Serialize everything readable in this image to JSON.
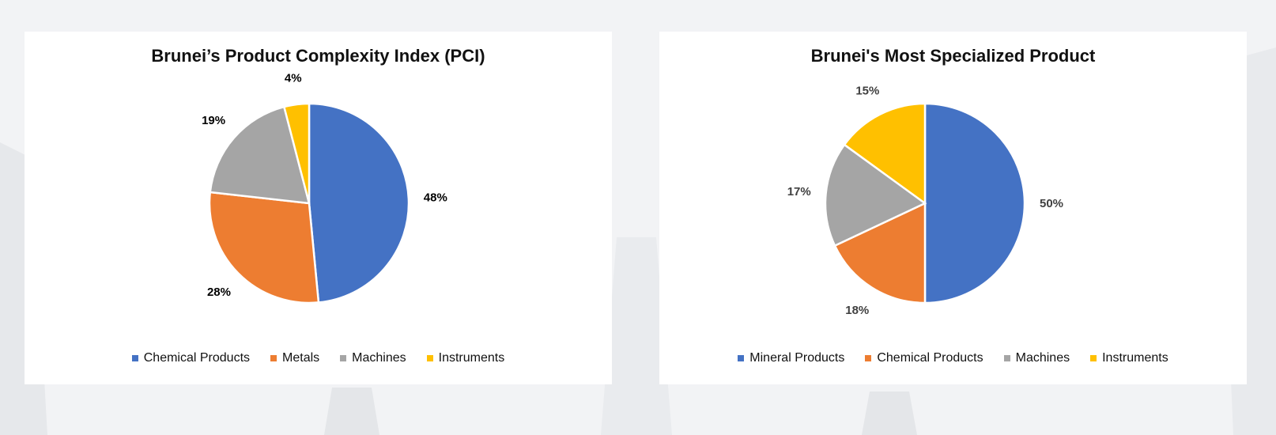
{
  "chart_data": [
    {
      "type": "pie",
      "title": "Brunei’s Product Complexity Index (PCI)",
      "categories": [
        "Chemical Products",
        "Metals",
        "Machines",
        "Instruments"
      ],
      "values": [
        48,
        28,
        19,
        4
      ],
      "labels": [
        "48%",
        "28%",
        "19%",
        "4%"
      ],
      "colors": [
        "#4472c4",
        "#ed7d31",
        "#a5a5a5",
        "#ffc000"
      ],
      "label_color": "#000000",
      "legend": "bottom"
    },
    {
      "type": "pie",
      "title": "Brunei's Most Specialized Product",
      "categories": [
        "Mineral Products",
        "Chemical Products",
        "Machines",
        "Instruments"
      ],
      "values": [
        50,
        18,
        17,
        15
      ],
      "labels": [
        "50%",
        "18%",
        "17%",
        "15%"
      ],
      "colors": [
        "#4472c4",
        "#ed7d31",
        "#a5a5a5",
        "#ffc000"
      ],
      "label_color": "#404040",
      "legend": "bottom"
    }
  ]
}
